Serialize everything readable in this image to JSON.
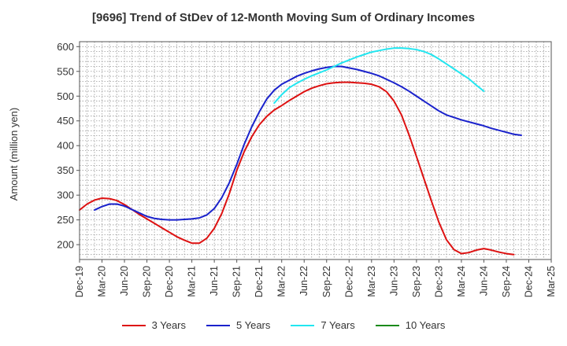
{
  "chart_data": {
    "type": "line",
    "title": "[9696]  Trend of StDev of 12-Month Moving Sum of Ordinary Incomes",
    "xlabel": "",
    "ylabel": "Amount (million yen)",
    "ylim": [
      170,
      610
    ],
    "yticks": [
      200,
      250,
      300,
      350,
      400,
      450,
      500,
      550,
      600
    ],
    "x_tick_labels": [
      "Dec-19",
      "Mar-20",
      "Jun-20",
      "Sep-20",
      "Dec-20",
      "Mar-21",
      "Jun-21",
      "Sep-21",
      "Dec-21",
      "Mar-22",
      "Jun-22",
      "Sep-22",
      "Dec-22",
      "Mar-23",
      "Jun-23",
      "Sep-23",
      "Dec-23",
      "Mar-24",
      "Jun-24",
      "Sep-24",
      "Dec-24",
      "Mar-25"
    ],
    "grid": true,
    "legend_position": "bottom",
    "series": [
      {
        "name": "3 Years",
        "color": "#dd1111",
        "start_index": 0,
        "values": [
          270,
          282,
          290,
          294,
          293,
          289,
          281,
          271,
          261,
          252,
          243,
          234,
          225,
          216,
          209,
          203,
          203,
          213,
          233,
          263,
          303,
          350,
          388,
          418,
          442,
          459,
          472,
          481,
          491,
          500,
          509,
          516,
          521,
          525,
          527,
          528,
          528,
          527,
          526,
          524,
          519,
          509,
          490,
          462,
          422,
          378,
          333,
          288,
          245,
          210,
          190,
          182,
          184,
          189,
          192,
          189,
          185,
          182,
          180
        ]
      },
      {
        "name": "5 Years",
        "color": "#1a22cc",
        "start_index": 2,
        "values": [
          270,
          277,
          282,
          282,
          278,
          271,
          264,
          257,
          253,
          251,
          250,
          250,
          251,
          252,
          254,
          260,
          273,
          295,
          325,
          362,
          403,
          438,
          468,
          494,
          512,
          524,
          532,
          540,
          546,
          551,
          555,
          558,
          560,
          560,
          557,
          554,
          550,
          546,
          541,
          534,
          527,
          519,
          510,
          500,
          490,
          480,
          470,
          462,
          457,
          452,
          448,
          444,
          440,
          435,
          431,
          427,
          423,
          421
        ]
      },
      {
        "name": "7 Years",
        "color": "#22e6f0",
        "start_index": 26,
        "values": [
          486,
          503,
          517,
          526,
          534,
          541,
          547,
          553,
          560,
          567,
          573,
          579,
          584,
          589,
          592,
          595,
          597,
          597,
          596,
          594,
          590,
          584,
          575,
          565,
          555,
          545,
          535,
          522,
          510
        ]
      },
      {
        "name": "10 Years",
        "color": "#1a8a1a",
        "start_index": 0,
        "values": []
      }
    ]
  }
}
